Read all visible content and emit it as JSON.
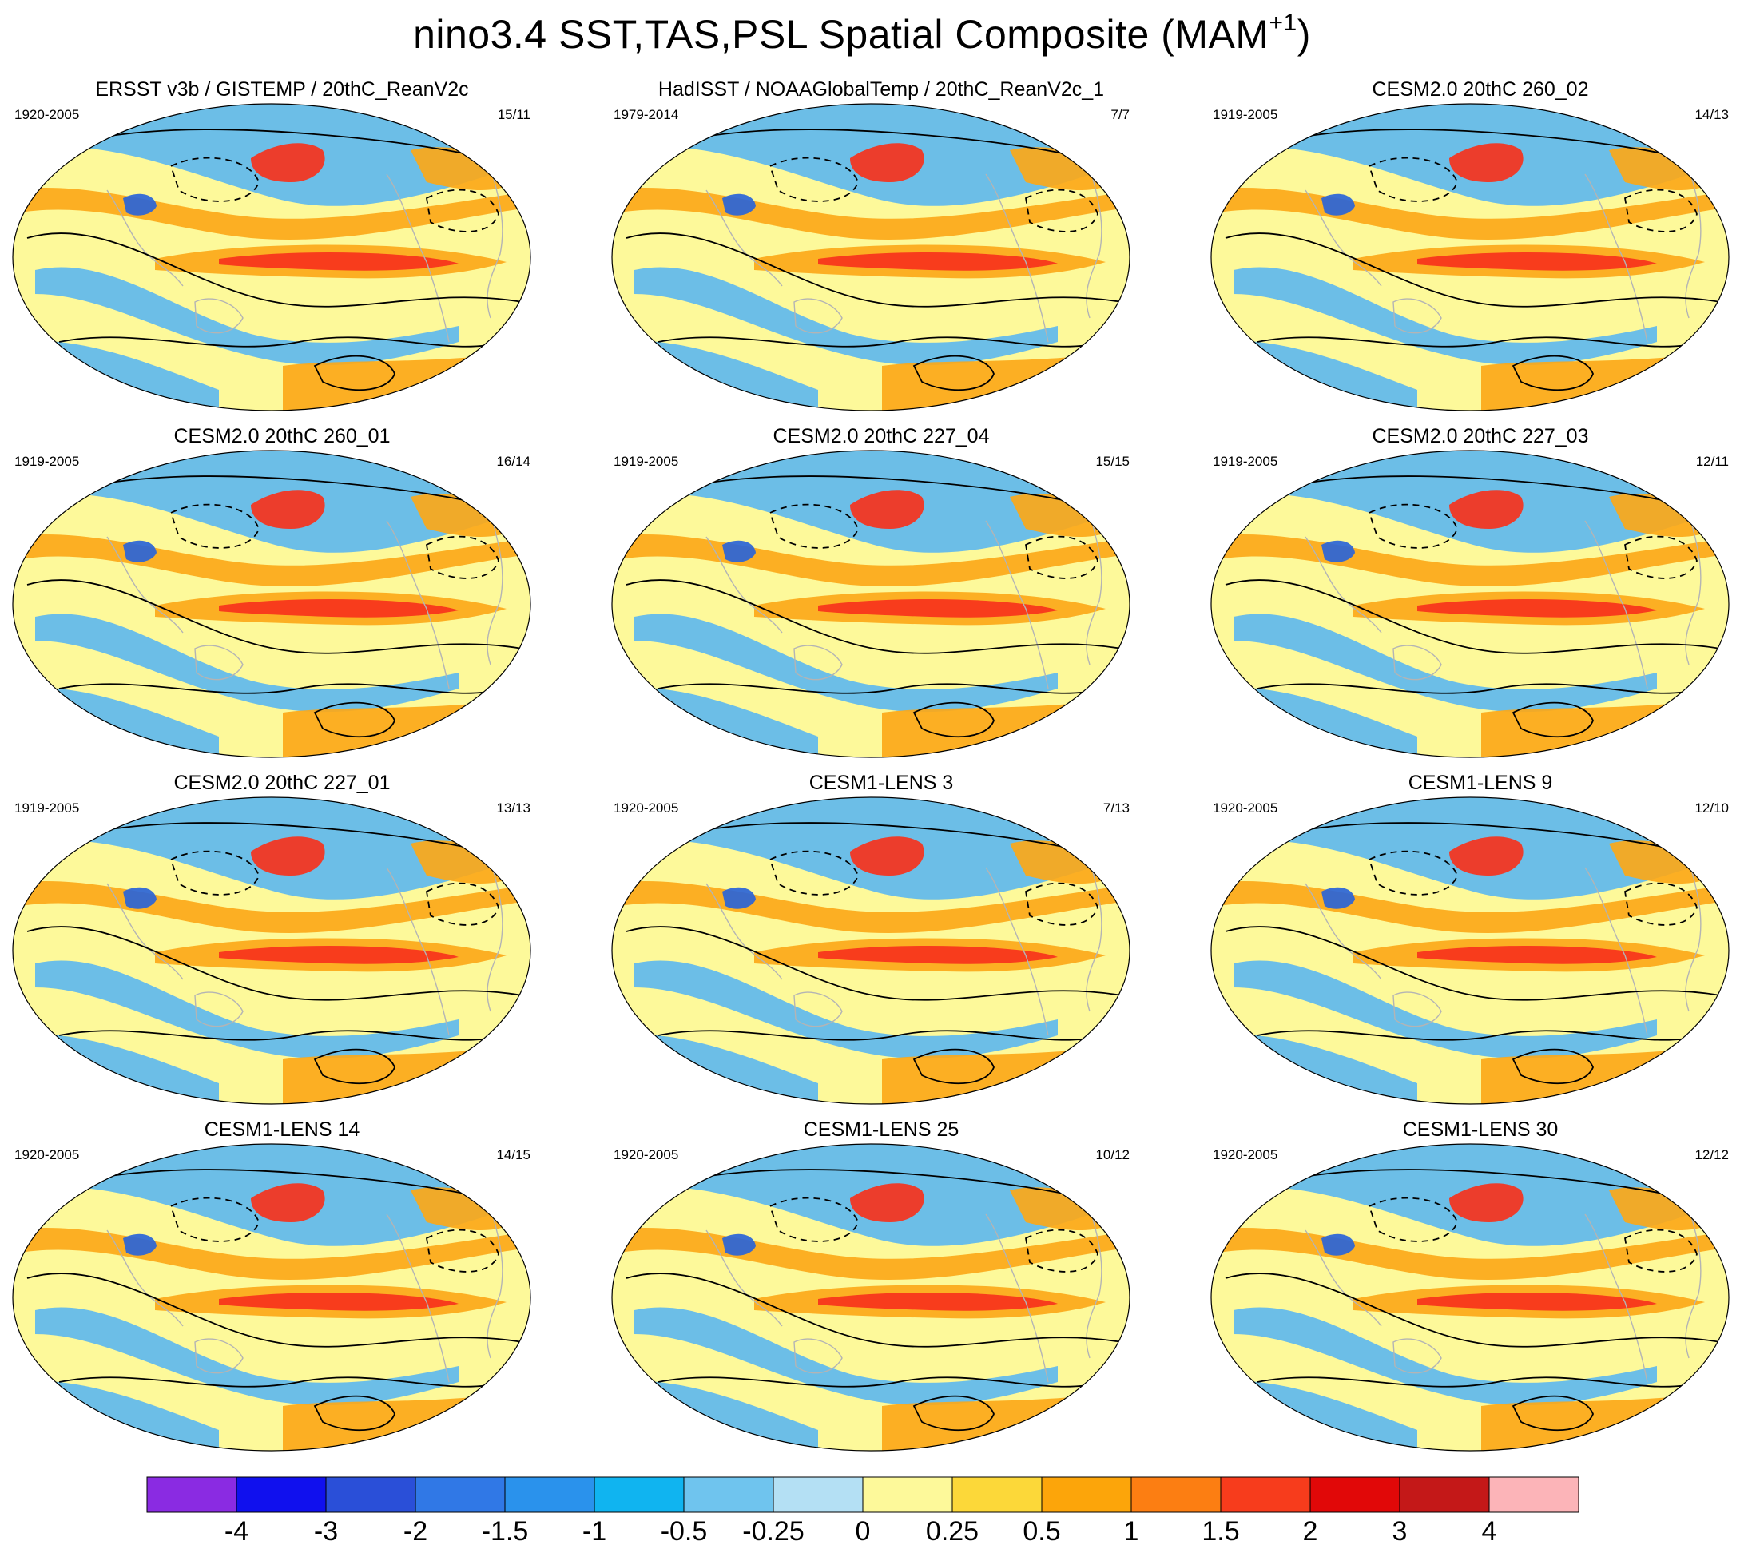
{
  "title": {
    "main": "nino3.4 SST,TAS,PSL Spatial Composite (MAM",
    "superscript": "+1",
    "close": ")"
  },
  "palette": {
    "ocean": "#fdf99a",
    "cool": "#5fb8ee",
    "warm": "#fca819",
    "hot": "#f7321c",
    "cold": "#2a64d8",
    "contour": "#000000",
    "coast": "#b4b4b4"
  },
  "panels": [
    {
      "title": "ERSST v3b / GISTEMP / 20thC_ReanV2c",
      "period": "1920-2005",
      "count": "15/11"
    },
    {
      "title": "HadISST / NOAAGlobalTemp / 20thC_ReanV2c_1",
      "period": "1979-2014",
      "count": "7/7"
    },
    {
      "title": "CESM2.0 20thC 260_02",
      "period": "1919-2005",
      "count": "14/13"
    },
    {
      "title": "CESM2.0 20thC 260_01",
      "period": "1919-2005",
      "count": "16/14"
    },
    {
      "title": "CESM2.0 20thC 227_04",
      "period": "1919-2005",
      "count": "15/15"
    },
    {
      "title": "CESM2.0 20thC 227_03",
      "period": "1919-2005",
      "count": "12/11"
    },
    {
      "title": "CESM2.0 20thC 227_01",
      "period": "1919-2005",
      "count": "13/13"
    },
    {
      "title": "CESM1-LENS 3",
      "period": "1920-2005",
      "count": "7/13"
    },
    {
      "title": "CESM1-LENS 9",
      "period": "1920-2005",
      "count": "12/10"
    },
    {
      "title": "CESM1-LENS 14",
      "period": "1920-2005",
      "count": "14/15"
    },
    {
      "title": "CESM1-LENS 25",
      "period": "1920-2005",
      "count": "10/12"
    },
    {
      "title": "CESM1-LENS 30",
      "period": "1920-2005",
      "count": "12/12"
    }
  ],
  "colorbar": {
    "colors": [
      "#8a2be2",
      "#1010ee",
      "#2a4fd8",
      "#3078e6",
      "#2a92ec",
      "#10b4f0",
      "#6fc4ee",
      "#b4e0f4",
      "#fdf99a",
      "#fcd839",
      "#fca50a",
      "#fc7e12",
      "#f73c1c",
      "#e10808",
      "#c41818",
      "#fcb4b8"
    ],
    "labels": [
      "-4",
      "-3",
      "-2",
      "-1.5",
      "-1",
      "-0.5",
      "-0.25",
      "0",
      "0.25",
      "0.5",
      "1",
      "1.5",
      "2",
      "3",
      "4"
    ]
  }
}
